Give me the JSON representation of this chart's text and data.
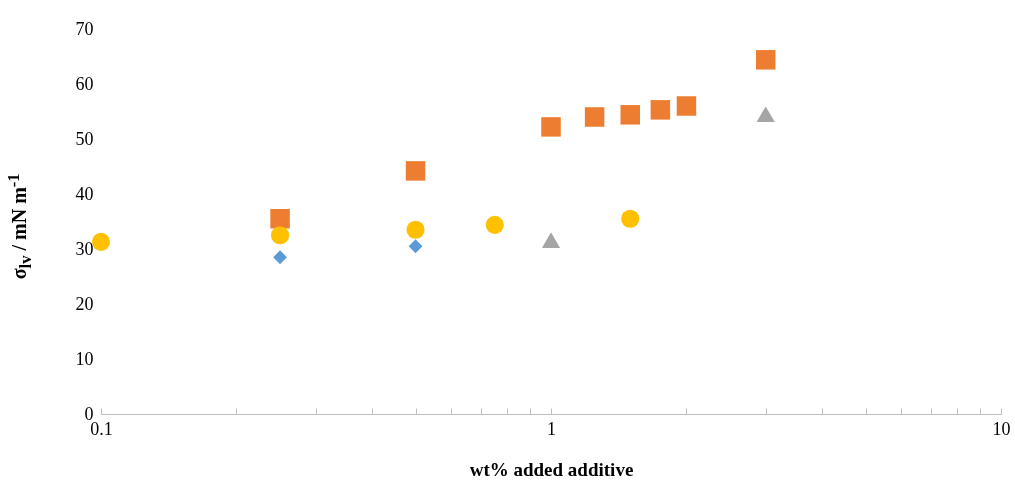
{
  "chart_data": {
    "type": "scatter",
    "xlabel": "wt% added additive",
    "ylabel": "σ$_{lv}$ / mN m$^{-1}$",
    "log": "x",
    "xlim": [
      0.1,
      10
    ],
    "xticks": [
      0.1,
      {
        "value": 0.2,
        "label": null
      },
      {
        "value": 0.3,
        "label": null
      },
      {
        "value": 0.4,
        "label": null
      },
      {
        "value": 0.5,
        "label": null
      },
      {
        "value": 0.6,
        "label": null
      },
      {
        "value": 0.7,
        "label": null
      },
      {
        "value": 0.8,
        "label": null
      },
      {
        "value": 0.9,
        "label": null
      },
      1,
      {
        "value": 2,
        "label": null
      },
      {
        "value": 3,
        "label": null
      },
      {
        "value": 4,
        "label": null
      },
      {
        "value": 5,
        "label": null
      },
      {
        "value": 6,
        "label": null
      },
      {
        "value": 7,
        "label": null
      },
      {
        "value": 8,
        "label": null
      },
      {
        "value": 9,
        "label": null
      },
      10
    ],
    "ylim": [
      0,
      70
    ],
    "yticks": [
      0,
      10,
      20,
      30,
      40,
      50,
      60,
      70
    ],
    "series": [
      {
        "color": "#ed7d31",
        "marker": "square",
        "x": [
          0.25,
          0.5,
          1,
          1.25,
          1.5,
          1.75,
          2,
          3
        ],
        "values": [
          35.5,
          44.2,
          52.2,
          54.0,
          54.4,
          55.3,
          56.0,
          64.4
        ]
      },
      {
        "color": "#a5a5a5",
        "marker": "triangle",
        "x": [
          1,
          3
        ],
        "values": [
          31.6,
          54.5
        ]
      },
      {
        "color": "#5b9bd5",
        "marker": "diamond",
        "x": [
          0.25,
          0.5
        ],
        "values": [
          28.5,
          30.5
        ]
      },
      {
        "color": "#ffc000",
        "marker": "circle",
        "x": [
          0.1,
          0.25,
          0.5,
          0.75,
          1.5
        ],
        "values": [
          31.3,
          32.5,
          33.5,
          34.4,
          35.5
        ]
      }
    ]
  }
}
